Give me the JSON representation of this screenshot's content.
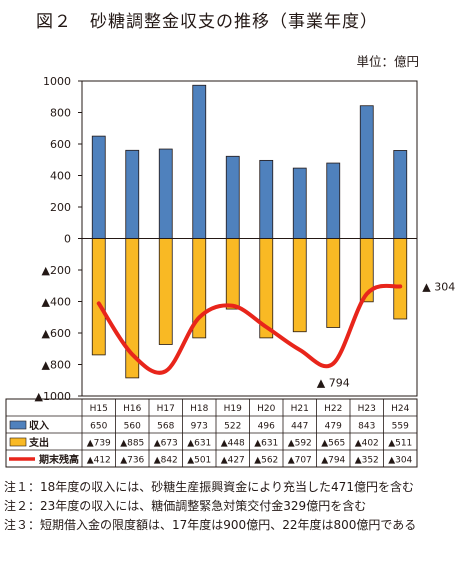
{
  "title": "図２　砂糖調整金収支の推移（事業年度）",
  "unit_label": "単位：億円",
  "chart_data": {
    "type": "bar",
    "categories": [
      "H15",
      "H16",
      "H17",
      "H18",
      "H19",
      "H20",
      "H21",
      "H22",
      "H23",
      "H24"
    ],
    "series": [
      {
        "name": "収入",
        "type": "bar",
        "color": "#4f81bd",
        "values": [
          650,
          560,
          568,
          973,
          522,
          496,
          447,
          479,
          843,
          559
        ],
        "labels": [
          "650",
          "560",
          "568",
          "973",
          "522",
          "496",
          "447",
          "479",
          "843",
          "559"
        ]
      },
      {
        "name": "支出",
        "type": "bar",
        "color": "#f9b924",
        "values": [
          -739,
          -885,
          -673,
          -631,
          -448,
          -631,
          -592,
          -565,
          -402,
          -511
        ],
        "labels": [
          "▲739",
          "▲885",
          "▲673",
          "▲631",
          "▲448",
          "▲631",
          "▲592",
          "▲565",
          "▲402",
          "▲511"
        ]
      },
      {
        "name": "期末残高",
        "type": "line",
        "color": "#e8251b",
        "values": [
          -412,
          -736,
          -842,
          -501,
          -427,
          -562,
          -707,
          -794,
          -352,
          -304
        ],
        "labels": [
          "▲412",
          "▲736",
          "▲842",
          "▲501",
          "▲427",
          "▲562",
          "▲707",
          "▲794",
          "▲352",
          "▲304"
        ]
      }
    ],
    "y_ticks": [
      "1000",
      "800",
      "600",
      "400",
      "200",
      "0",
      "▲200",
      "▲400",
      "▲600",
      "▲800",
      "▲1000"
    ],
    "ylim": [
      -1000,
      1000
    ],
    "annotations": [
      {
        "text": "▲ 794",
        "category": "H22",
        "series": "期末残高"
      },
      {
        "text": "▲ 304",
        "category": "H24",
        "series": "期末残高"
      }
    ],
    "legend": "data-table"
  },
  "notes": [
    {
      "label": "注１：",
      "text": "18年度の収入には、砂糖生産振興資金により充当した471億円を含む"
    },
    {
      "label": "注２：",
      "text": "23年度の収入には、糖価調整緊急対策交付金329億円を含む"
    },
    {
      "label": "注３：",
      "text": "短期借入金の限度額は、17年度は900億円、22年度は800億円である"
    }
  ]
}
